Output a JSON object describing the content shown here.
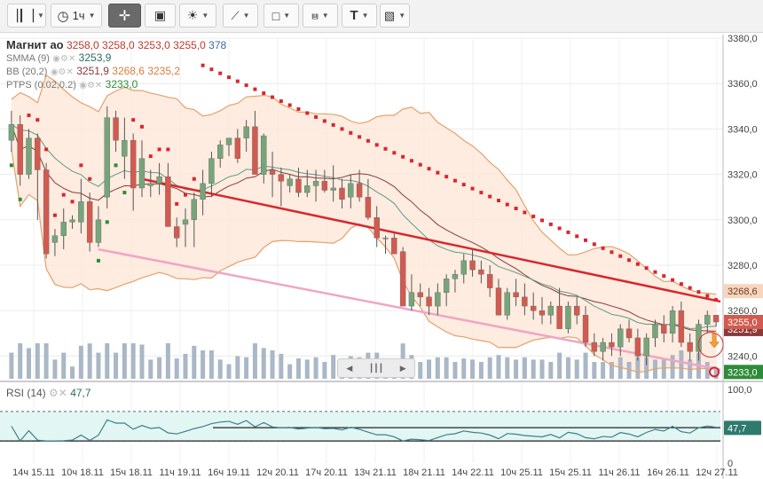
{
  "toolbar": {
    "timeframe": "1ч",
    "buttons": [
      "candles",
      "timeframe",
      "crosshair",
      "fullscreen",
      "indicators",
      "draw-line",
      "shapes",
      "fib",
      "text",
      "image"
    ]
  },
  "legend": {
    "symbol": "Магнит ао",
    "o": "3258,0",
    "h": "3258,0",
    "l": "3253,0",
    "c": "3255,0",
    "vol": "378",
    "smma_name": "SMMA (9)",
    "smma_val": "3253,9",
    "bb_name": "BB (20,2)",
    "bb_mid": "3251,9",
    "bb_up": "3268,6",
    "bb_low": "3235,2",
    "ptps_name": "PTPS (0.02,0.2)",
    "ptps_val": "3233,0"
  },
  "rsi": {
    "name": "RSI (14)",
    "value": "47,7",
    "levels": [
      "100,0",
      "0"
    ]
  },
  "price_tags": {
    "bb_upper": "3268,6",
    "close": "3255,0",
    "bb_mid": "3251,9",
    "ptps": "3233,0"
  },
  "colors": {
    "up": "#76a57a",
    "down": "#d25a4f",
    "bb": "#e6a06b",
    "smma": "#5f9a86",
    "mid": "#8a3a3a",
    "ptps_r": "#d9262e",
    "ptps_g": "#2e8b37",
    "trend_r": "#d9262e",
    "trend_p": "#f0a5c4"
  },
  "chart_data": {
    "type": "candlestick",
    "title": "Магнит ао",
    "ylim": [
      3230,
      3380
    ],
    "y_ticks": [
      3380,
      3360,
      3340,
      3320,
      3300,
      3280,
      3260,
      3240
    ],
    "x_ticks": [
      "14ч 15.11",
      "10ч 18.11",
      "15ч 18.11",
      "11ч 19.11",
      "16ч 19.11",
      "12ч 20.11",
      "17ч 20.11",
      "13ч 21.11",
      "18ч 21.11",
      "14ч 22.11",
      "10ч 25.11",
      "15ч 25.11",
      "11ч 26.11",
      "16ч 26.11",
      "12ч 27.11"
    ],
    "candles": [
      [
        3335,
        3348,
        3330,
        3342
      ],
      [
        3342,
        3346,
        3315,
        3320
      ],
      [
        3320,
        3340,
        3318,
        3336
      ],
      [
        3336,
        3338,
        3300,
        3322
      ],
      [
        3322,
        3325,
        3283,
        3285
      ],
      [
        3290,
        3296,
        3284,
        3293
      ],
      [
        3293,
        3305,
        3287,
        3299
      ],
      [
        3299,
        3302,
        3296,
        3300
      ],
      [
        3299,
        3318,
        3294,
        3308
      ],
      [
        3308,
        3312,
        3286,
        3290
      ],
      [
        3290,
        3306,
        3288,
        3300
      ],
      [
        3310,
        3350,
        3305,
        3345
      ],
      [
        3345,
        3348,
        3330,
        3335
      ],
      [
        3328,
        3345,
        3318,
        3335
      ],
      [
        3335,
        3338,
        3304,
        3314
      ],
      [
        3314,
        3335,
        3310,
        3327
      ],
      [
        3315,
        3322,
        3310,
        3316
      ],
      [
        3316,
        3325,
        3311,
        3319
      ],
      [
        3319,
        3325,
        3298,
        3297
      ],
      [
        3297,
        3301,
        3288,
        3292
      ],
      [
        3298,
        3305,
        3288,
        3300
      ],
      [
        3300,
        3312,
        3288,
        3309
      ],
      [
        3309,
        3322,
        3302,
        3316
      ],
      [
        3316,
        3330,
        3310,
        3327
      ],
      [
        3327,
        3335,
        3323,
        3333
      ],
      [
        3333,
        3336,
        3328,
        3336
      ],
      [
        3336,
        3340,
        3325,
        3327
      ],
      [
        3336,
        3344,
        3330,
        3341
      ],
      [
        3341,
        3348,
        3320,
        3320
      ],
      [
        3320,
        3338,
        3316,
        3337
      ],
      [
        3322,
        3330,
        3310,
        3320
      ],
      [
        3320,
        3323,
        3306,
        3317
      ],
      [
        3315,
        3320,
        3312,
        3318
      ],
      [
        3318,
        3323,
        3310,
        3312
      ],
      [
        3312,
        3322,
        3310,
        3315
      ],
      [
        3315,
        3322,
        3308,
        3317
      ],
      [
        3317,
        3322,
        3312,
        3313
      ],
      [
        3313,
        3324,
        3308,
        3314
      ],
      [
        3314,
        3318,
        3305,
        3309
      ],
      [
        3310,
        3320,
        3305,
        3316
      ],
      [
        3316,
        3322,
        3308,
        3310
      ],
      [
        3310,
        3318,
        3300,
        3301
      ],
      [
        3301,
        3306,
        3288,
        3292
      ],
      [
        3292,
        3293,
        3285,
        3292
      ],
      [
        3292,
        3294,
        3286,
        3285
      ],
      [
        3286,
        3288,
        3262,
        3262
      ],
      [
        3262,
        3276,
        3260,
        3268
      ],
      [
        3268,
        3272,
        3262,
        3266
      ],
      [
        3266,
        3270,
        3258,
        3262
      ],
      [
        3262,
        3272,
        3258,
        3268
      ],
      [
        3268,
        3276,
        3262,
        3274
      ],
      [
        3274,
        3278,
        3268,
        3276
      ],
      [
        3276,
        3285,
        3272,
        3282
      ],
      [
        3282,
        3287,
        3275,
        3278
      ],
      [
        3278,
        3282,
        3272,
        3276
      ],
      [
        3276,
        3280,
        3266,
        3270
      ],
      [
        3270,
        3274,
        3258,
        3258
      ],
      [
        3258,
        3270,
        3256,
        3268
      ],
      [
        3268,
        3274,
        3262,
        3266
      ],
      [
        3266,
        3272,
        3258,
        3262
      ],
      [
        3262,
        3268,
        3256,
        3260
      ],
      [
        3260,
        3266,
        3254,
        3258
      ],
      [
        3258,
        3264,
        3254,
        3262
      ],
      [
        3262,
        3270,
        3252,
        3252
      ],
      [
        3252,
        3264,
        3250,
        3262
      ],
      [
        3262,
        3266,
        3254,
        3258
      ],
      [
        3258,
        3262,
        3244,
        3246
      ],
      [
        3246,
        3250,
        3240,
        3242
      ],
      [
        3242,
        3248,
        3238,
        3246
      ],
      [
        3246,
        3250,
        3240,
        3244
      ],
      [
        3244,
        3254,
        3240,
        3252
      ],
      [
        3252,
        3256,
        3246,
        3248
      ],
      [
        3248,
        3252,
        3238,
        3240
      ],
      [
        3240,
        3250,
        3236,
        3248
      ],
      [
        3248,
        3256,
        3244,
        3254
      ],
      [
        3254,
        3258,
        3246,
        3250
      ],
      [
        3250,
        3262,
        3246,
        3260
      ],
      [
        3260,
        3264,
        3244,
        3246
      ],
      [
        3246,
        3250,
        3238,
        3242
      ],
      [
        3242,
        3256,
        3238,
        3254
      ],
      [
        3254,
        3260,
        3250,
        3258
      ],
      [
        3258,
        3258,
        3253,
        3255
      ]
    ],
    "rsi_ylim": [
      0,
      100
    ]
  }
}
